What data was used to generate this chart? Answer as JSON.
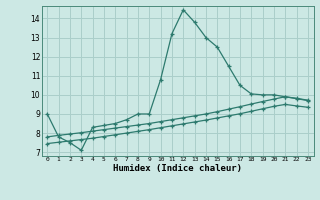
{
  "xlabel": "Humidex (Indice chaleur)",
  "background_color": "#cce8e4",
  "grid_color": "#aaceca",
  "line_color": "#2d7a6e",
  "xlim": [
    -0.5,
    23.5
  ],
  "ylim": [
    6.8,
    14.65
  ],
  "xticks": [
    0,
    1,
    2,
    3,
    4,
    5,
    6,
    7,
    8,
    9,
    10,
    11,
    12,
    13,
    14,
    15,
    16,
    17,
    18,
    19,
    20,
    21,
    22,
    23
  ],
  "yticks": [
    7,
    8,
    9,
    10,
    11,
    12,
    13,
    14
  ],
  "line1_x": [
    0,
    1,
    2,
    3,
    4,
    5,
    6,
    7,
    8,
    9,
    10,
    11,
    12,
    13,
    14,
    15,
    16,
    17,
    18,
    19,
    20,
    21,
    22,
    23
  ],
  "line1_y": [
    9.0,
    7.8,
    7.5,
    7.1,
    8.3,
    8.4,
    8.5,
    8.7,
    9.0,
    9.0,
    10.8,
    13.2,
    14.45,
    13.8,
    13.0,
    12.5,
    11.5,
    10.5,
    10.05,
    10.0,
    10.0,
    9.9,
    9.8,
    9.7
  ],
  "line2_x": [
    0,
    1,
    2,
    3,
    4,
    5,
    6,
    7,
    8,
    9,
    10,
    11,
    12,
    13,
    14,
    15,
    16,
    17,
    18,
    19,
    20,
    21,
    22,
    23
  ],
  "line2_y": [
    7.8,
    7.88,
    7.95,
    8.02,
    8.1,
    8.18,
    8.26,
    8.34,
    8.42,
    8.5,
    8.6,
    8.7,
    8.8,
    8.9,
    9.0,
    9.12,
    9.25,
    9.38,
    9.52,
    9.65,
    9.78,
    9.9,
    9.82,
    9.72
  ],
  "line3_x": [
    0,
    1,
    2,
    3,
    4,
    5,
    6,
    7,
    8,
    9,
    10,
    11,
    12,
    13,
    14,
    15,
    16,
    17,
    18,
    19,
    20,
    21,
    22,
    23
  ],
  "line3_y": [
    7.45,
    7.52,
    7.59,
    7.66,
    7.73,
    7.82,
    7.91,
    8.0,
    8.09,
    8.18,
    8.28,
    8.38,
    8.48,
    8.58,
    8.68,
    8.79,
    8.9,
    9.01,
    9.14,
    9.27,
    9.4,
    9.5,
    9.42,
    9.35
  ]
}
